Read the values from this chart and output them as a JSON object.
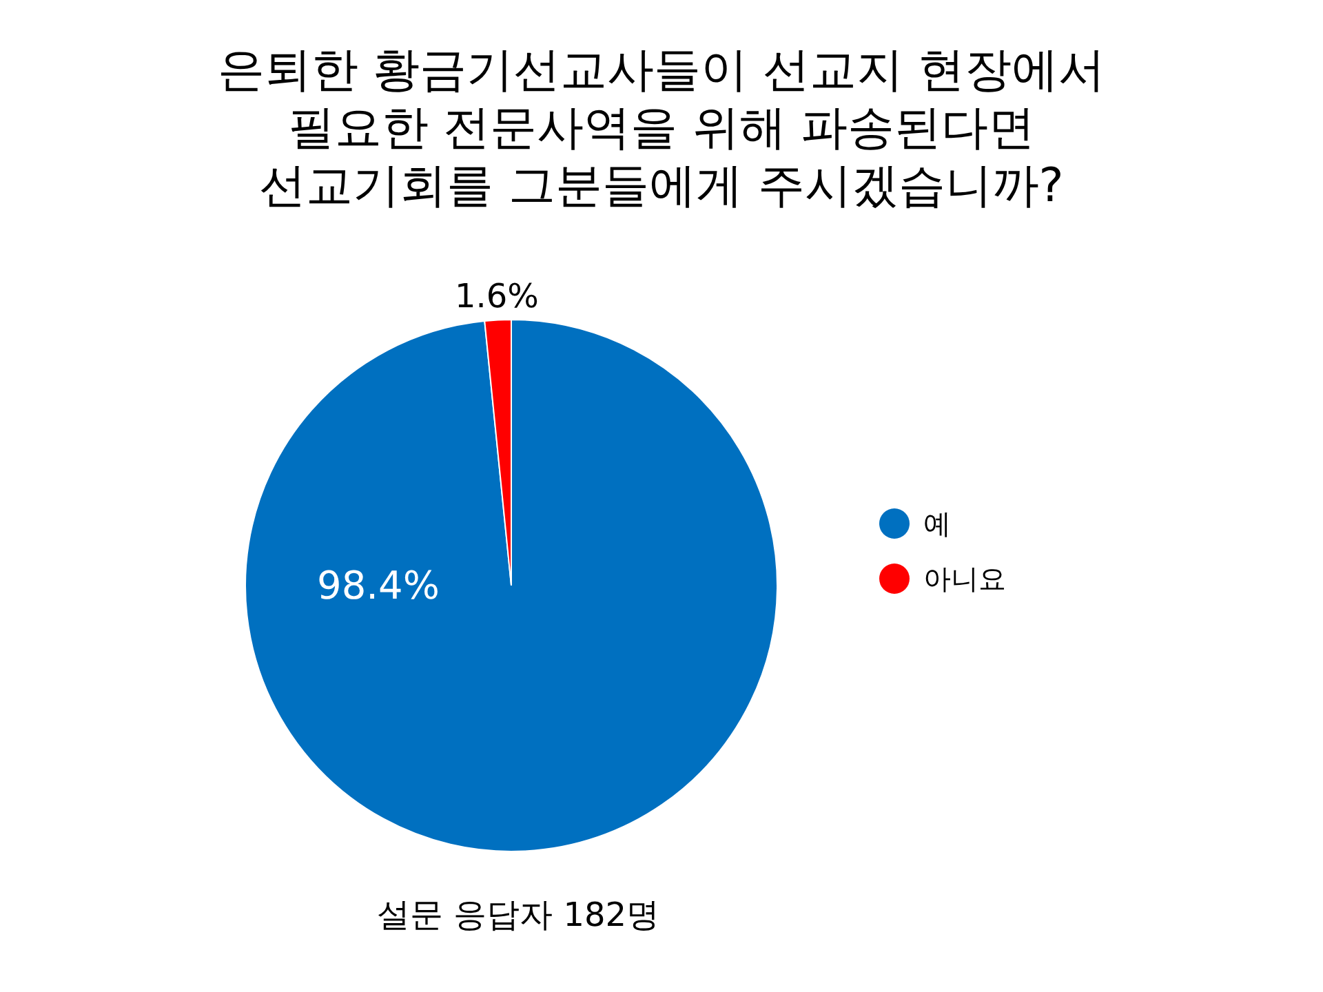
{
  "chart_data": {
    "type": "pie",
    "title": "은퇴한 황금기선교사들이 선교지 현장에서 필요한 전문사역을 위해 파송된다면 선교기회를 그분들에게 주시겠습니까?",
    "categories": [
      "예",
      "아니요"
    ],
    "values": [
      98.4,
      1.6
    ],
    "colors": [
      "#0070c0",
      "#ff0000"
    ],
    "value_labels": [
      "98.4%",
      "1.6%"
    ],
    "legend": "right",
    "annotations": [
      "설문 응답자 182명"
    ]
  }
}
